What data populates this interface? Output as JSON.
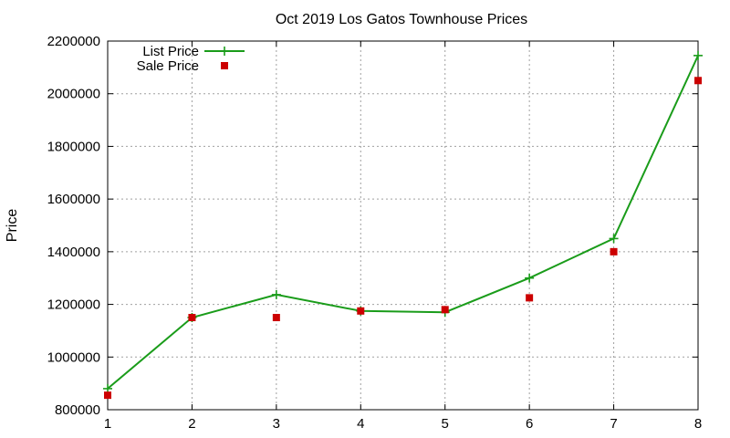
{
  "chart_data": {
    "type": "line",
    "title": "Oct 2019 Los Gatos Townhouse Prices",
    "xlabel": "",
    "ylabel": "Price",
    "x": [
      1,
      2,
      3,
      4,
      5,
      6,
      7,
      8
    ],
    "xlim": [
      1,
      8
    ],
    "ylim": [
      800000,
      2200000
    ],
    "xticks": [
      "1",
      "2",
      "3",
      "4",
      "5",
      "6",
      "7",
      "8"
    ],
    "yticks": [
      "800000",
      "1000000",
      "1200000",
      "1400000",
      "1600000",
      "1800000",
      "2000000",
      "2200000"
    ],
    "grid": true,
    "legend_position": "top-left",
    "series": [
      {
        "name": "List Price",
        "style": "line+cross",
        "color": "#1a9c1a",
        "values": [
          880000,
          1150000,
          1237000,
          1175000,
          1170000,
          1300000,
          1450000,
          2145000
        ]
      },
      {
        "name": "Sale Price",
        "style": "square",
        "color": "#cc0000",
        "values": [
          855000,
          1150000,
          1150000,
          1175000,
          1180000,
          1225000,
          1400000,
          2050000
        ]
      }
    ]
  }
}
